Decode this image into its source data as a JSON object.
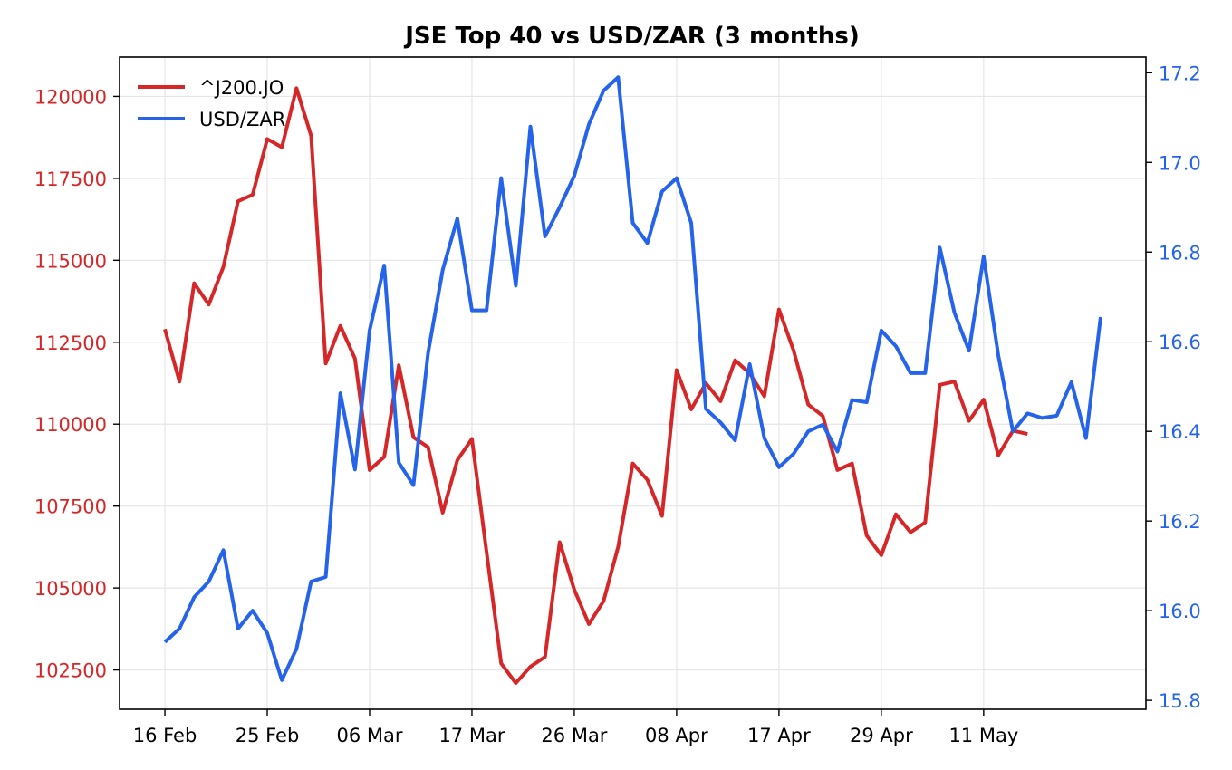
{
  "chart_data": {
    "type": "line",
    "title": "JSE Top 40 vs USD/ZAR (3 months)",
    "xlabel": "",
    "ylabel_left": "",
    "ylabel_right": "",
    "grid": true,
    "legend_position": "top-left",
    "x_tick_labels": [
      "16 Feb",
      "25 Feb",
      "06 Mar",
      "17 Mar",
      "26 Mar",
      "08 Apr",
      "17 Apr",
      "29 Apr",
      "11 May"
    ],
    "x_tick_index": [
      0,
      7,
      14,
      21,
      28,
      35,
      42,
      49,
      56
    ],
    "x_range_index": [
      -3.1,
      67.1
    ],
    "y_left": {
      "ylim": [
        101300,
        121200
      ],
      "ticks": [
        102500,
        105000,
        107500,
        110000,
        112500,
        115000,
        117500,
        120000
      ],
      "tick_labels": [
        "102500",
        "105000",
        "107500",
        "110000",
        "112500",
        "115000",
        "117500",
        "120000"
      ],
      "color": "#d62728"
    },
    "y_right": {
      "ylim": [
        15.78,
        17.235
      ],
      "ticks": [
        15.8,
        16.0,
        16.2,
        16.4,
        16.6,
        16.8,
        17.0,
        17.2
      ],
      "tick_labels": [
        "15.8",
        "16.0",
        "16.2",
        "16.4",
        "16.6",
        "16.8",
        "17.0",
        "17.2"
      ],
      "color": "#2563eb"
    },
    "series": [
      {
        "name": "^J200.JO",
        "axis": "left",
        "color": "#d62728",
        "values": [
          112900,
          111300,
          114300,
          113650,
          114800,
          116800,
          117000,
          118700,
          118450,
          120250,
          118800,
          111850,
          113000,
          112000,
          108600,
          109000,
          111800,
          109600,
          109300,
          107300,
          108900,
          109550,
          106100,
          102700,
          102100,
          102600,
          102900,
          106400,
          104950,
          103900,
          104600,
          106250,
          108800,
          108300,
          107200,
          111650,
          110450,
          111250,
          110700,
          111950,
          111550,
          110850,
          113500,
          112250,
          110600,
          110250,
          108600,
          108800,
          106600,
          106000,
          107250,
          106700,
          107000,
          111200,
          111300,
          110100,
          110750,
          109050,
          109800,
          109700
        ]
      },
      {
        "name": "USD/ZAR",
        "axis": "right",
        "color": "#2563eb",
        "values": [
          15.93,
          15.96,
          16.03,
          16.065,
          16.135,
          15.96,
          16.0,
          15.95,
          15.845,
          15.915,
          16.065,
          16.075,
          16.485,
          16.315,
          16.625,
          16.77,
          16.33,
          16.28,
          16.575,
          16.76,
          16.875,
          16.67,
          16.67,
          16.965,
          16.725,
          17.08,
          16.835,
          16.9,
          16.97,
          17.085,
          17.16,
          17.19,
          16.865,
          16.82,
          16.935,
          16.965,
          16.865,
          16.45,
          16.42,
          16.38,
          16.55,
          16.385,
          16.32,
          16.35,
          16.4,
          16.415,
          16.355,
          16.47,
          16.465,
          16.625,
          16.59,
          16.53,
          16.53,
          16.81,
          16.665,
          16.58,
          16.79,
          16.57,
          16.4,
          16.44,
          16.43,
          16.435,
          16.51,
          16.385,
          16.655
        ]
      }
    ]
  }
}
